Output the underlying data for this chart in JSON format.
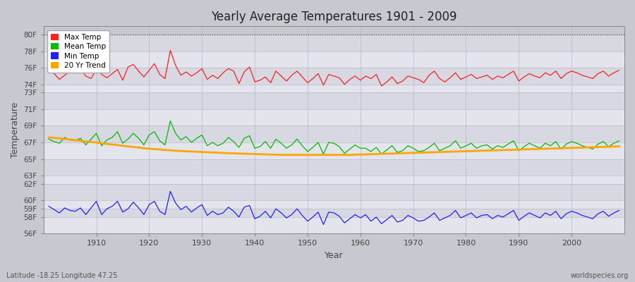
{
  "title": "Yearly Average Temperatures 1901 - 2009",
  "xlabel": "Year",
  "ylabel": "Temperature",
  "bottom_left": "Latitude -18.25 Longitude 47.25",
  "bottom_right": "worldspecies.org",
  "year_start": 1901,
  "year_end": 2009,
  "ylim": [
    56,
    81
  ],
  "ytick_vals": [
    56,
    58,
    59,
    60,
    62,
    63,
    65,
    67,
    69,
    71,
    73,
    74,
    76,
    78,
    80
  ],
  "ytick_labels": [
    "56F",
    "58F",
    "59F",
    "60F",
    "62F",
    "63F",
    "65F",
    "67F",
    "69F",
    "71F",
    "73F",
    "74F",
    "76F",
    "78F",
    "80F"
  ],
  "bg_color": "#d8d8d8",
  "plot_bg": "#d8d8d8",
  "band_light": "#e0e0e8",
  "band_dark": "#d0d0da",
  "grid_color": "#c0c0c8",
  "max_temp_color": "#ff2020",
  "mean_temp_color": "#00bb00",
  "min_temp_color": "#2020ff",
  "trend_color": "#ffa500",
  "legend_labels": [
    "Max Temp",
    "Mean Temp",
    "Min Temp",
    "20 Yr Trend"
  ],
  "xticks": [
    1910,
    1920,
    1930,
    1940,
    1950,
    1960,
    1970,
    1980,
    1990,
    2000
  ],
  "max_temp": [
    75.9,
    75.3,
    74.6,
    75.1,
    75.6,
    76.4,
    75.8,
    75.0,
    74.7,
    75.8,
    75.2,
    74.8,
    75.3,
    75.8,
    74.5,
    76.1,
    76.4,
    75.6,
    74.9,
    75.7,
    76.5,
    75.2,
    74.7,
    78.1,
    76.3,
    75.1,
    75.5,
    75.0,
    75.4,
    75.9,
    74.6,
    75.1,
    74.7,
    75.4,
    75.9,
    75.6,
    74.1,
    75.5,
    76.1,
    74.3,
    74.5,
    74.9,
    74.2,
    75.6,
    75.0,
    74.4,
    75.1,
    75.6,
    74.9,
    74.2,
    74.7,
    75.3,
    73.9,
    75.2,
    75.0,
    74.8,
    74.0,
    74.6,
    75.0,
    74.5,
    75.0,
    74.7,
    75.2,
    73.8,
    74.3,
    74.9,
    74.1,
    74.4,
    75.0,
    74.8,
    74.6,
    74.2,
    75.1,
    75.6,
    74.7,
    74.3,
    74.8,
    75.4,
    74.6,
    74.9,
    75.2,
    74.7,
    74.9,
    75.1,
    74.6,
    75.0,
    74.8,
    75.2,
    75.6,
    74.4,
    74.9,
    75.3,
    75.0,
    74.8,
    75.4,
    75.1,
    75.6,
    74.7,
    75.3,
    75.6,
    75.4,
    75.1,
    74.9,
    74.7,
    75.3,
    75.6,
    75.0,
    75.4,
    75.7
  ],
  "mean_temp": [
    67.4,
    67.1,
    66.9,
    67.6,
    67.3,
    67.2,
    67.5,
    66.7,
    67.4,
    68.1,
    66.6,
    67.3,
    67.6,
    68.3,
    66.9,
    67.4,
    68.1,
    67.5,
    66.7,
    67.9,
    68.3,
    67.2,
    66.7,
    69.6,
    68.1,
    67.3,
    67.7,
    67.0,
    67.5,
    67.9,
    66.6,
    67.0,
    66.6,
    66.9,
    67.6,
    67.1,
    66.4,
    67.5,
    67.8,
    66.3,
    66.5,
    67.1,
    66.3,
    67.4,
    66.9,
    66.3,
    66.7,
    67.4,
    66.6,
    65.9,
    66.4,
    67.0,
    65.6,
    67.0,
    66.9,
    66.5,
    65.7,
    66.2,
    66.7,
    66.3,
    66.3,
    65.9,
    66.4,
    65.6,
    66.1,
    66.6,
    65.8,
    66.0,
    66.6,
    66.3,
    65.9,
    66.0,
    66.4,
    66.9,
    66.0,
    66.3,
    66.6,
    67.2,
    66.3,
    66.6,
    66.9,
    66.3,
    66.6,
    66.7,
    66.2,
    66.6,
    66.4,
    66.8,
    67.2,
    66.0,
    66.5,
    66.9,
    66.6,
    66.3,
    66.9,
    66.6,
    67.1,
    66.2,
    66.8,
    67.1,
    66.9,
    66.6,
    66.4,
    66.2,
    66.8,
    67.1,
    66.5,
    66.9,
    67.2
  ],
  "min_temp": [
    59.3,
    58.9,
    58.5,
    59.1,
    58.8,
    58.7,
    59.1,
    58.3,
    59.1,
    59.9,
    58.3,
    59.0,
    59.3,
    59.9,
    58.6,
    59.0,
    59.8,
    59.1,
    58.3,
    59.5,
    59.9,
    58.7,
    58.3,
    61.1,
    59.7,
    58.9,
    59.3,
    58.6,
    59.1,
    59.5,
    58.2,
    58.7,
    58.3,
    58.5,
    59.2,
    58.7,
    58.0,
    59.2,
    59.4,
    57.8,
    58.1,
    58.7,
    57.9,
    59.0,
    58.5,
    57.9,
    58.3,
    59.0,
    58.2,
    57.5,
    58.0,
    58.6,
    57.1,
    58.6,
    58.5,
    58.1,
    57.3,
    57.8,
    58.3,
    57.9,
    58.3,
    57.5,
    58.0,
    57.2,
    57.7,
    58.2,
    57.4,
    57.6,
    58.2,
    57.9,
    57.5,
    57.6,
    58.0,
    58.5,
    57.6,
    57.9,
    58.2,
    58.8,
    57.9,
    58.2,
    58.5,
    57.9,
    58.2,
    58.3,
    57.8,
    58.2,
    58.0,
    58.4,
    58.8,
    57.6,
    58.1,
    58.5,
    58.2,
    57.9,
    58.5,
    58.2,
    58.7,
    57.8,
    58.4,
    58.7,
    58.5,
    58.2,
    58.0,
    57.8,
    58.4,
    58.7,
    58.1,
    58.5,
    58.8
  ],
  "trend": [
    67.6,
    67.55,
    67.5,
    67.42,
    67.35,
    67.28,
    67.2,
    67.12,
    67.05,
    66.98,
    66.9,
    66.82,
    66.75,
    66.68,
    66.6,
    66.52,
    66.45,
    66.38,
    66.3,
    66.25,
    66.2,
    66.15,
    66.1,
    66.05,
    66.0,
    65.97,
    65.94,
    65.91,
    65.88,
    65.85,
    65.82,
    65.79,
    65.76,
    65.73,
    65.7,
    65.68,
    65.66,
    65.64,
    65.62,
    65.6,
    65.58,
    65.56,
    65.54,
    65.52,
    65.5,
    65.5,
    65.5,
    65.5,
    65.5,
    65.5,
    65.5,
    65.5,
    65.5,
    65.5,
    65.5,
    65.5,
    65.5,
    65.5,
    65.52,
    65.54,
    65.56,
    65.58,
    65.6,
    65.62,
    65.64,
    65.66,
    65.68,
    65.7,
    65.72,
    65.74,
    65.76,
    65.78,
    65.8,
    65.82,
    65.84,
    65.86,
    65.88,
    65.9,
    65.92,
    65.94,
    65.96,
    65.98,
    66.0,
    66.02,
    66.04,
    66.06,
    66.08,
    66.1,
    66.12,
    66.14,
    66.16,
    66.18,
    66.2,
    66.22,
    66.24,
    66.26,
    66.28,
    66.3,
    66.32,
    66.34,
    66.36,
    66.38,
    66.4,
    66.42,
    66.44,
    66.46,
    66.48,
    66.5,
    66.52
  ]
}
